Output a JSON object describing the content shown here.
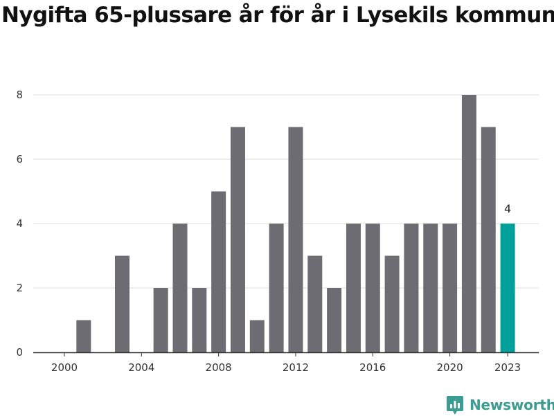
{
  "chart_data": {
    "type": "bar",
    "title": "Nygifta 65-plussare år för år i Lysekils kommun",
    "categories": [
      "2000",
      "2001",
      "2002",
      "2003",
      "2004",
      "2005",
      "2006",
      "2007",
      "2008",
      "2009",
      "2010",
      "2011",
      "2012",
      "2013",
      "2014",
      "2015",
      "2016",
      "2017",
      "2018",
      "2019",
      "2020",
      "2021",
      "2022",
      "2023"
    ],
    "values": [
      0,
      1,
      0,
      3,
      0,
      2,
      4,
      2,
      5,
      7,
      1,
      4,
      7,
      3,
      2,
      4,
      4,
      3,
      4,
      4,
      4,
      8,
      7,
      4
    ],
    "x_tick_labels": [
      "2000",
      "2004",
      "2008",
      "2012",
      "2016",
      "2020",
      "2023"
    ],
    "y_ticks": [
      0,
      2,
      4,
      6,
      8
    ],
    "ylim": [
      0,
      8
    ],
    "xlabel": "",
    "ylabel": "",
    "grid": true,
    "highlight": {
      "category": "2023",
      "label": "4"
    },
    "colors": {
      "bar": "#6d6c72",
      "highlight": "#00a19a",
      "grid": "#dcdcdc",
      "axis": "#333333"
    }
  },
  "branding": {
    "name": "Newsworthy",
    "logo_icon": "newsworthy-logo-icon",
    "color": "#3b9c91"
  }
}
